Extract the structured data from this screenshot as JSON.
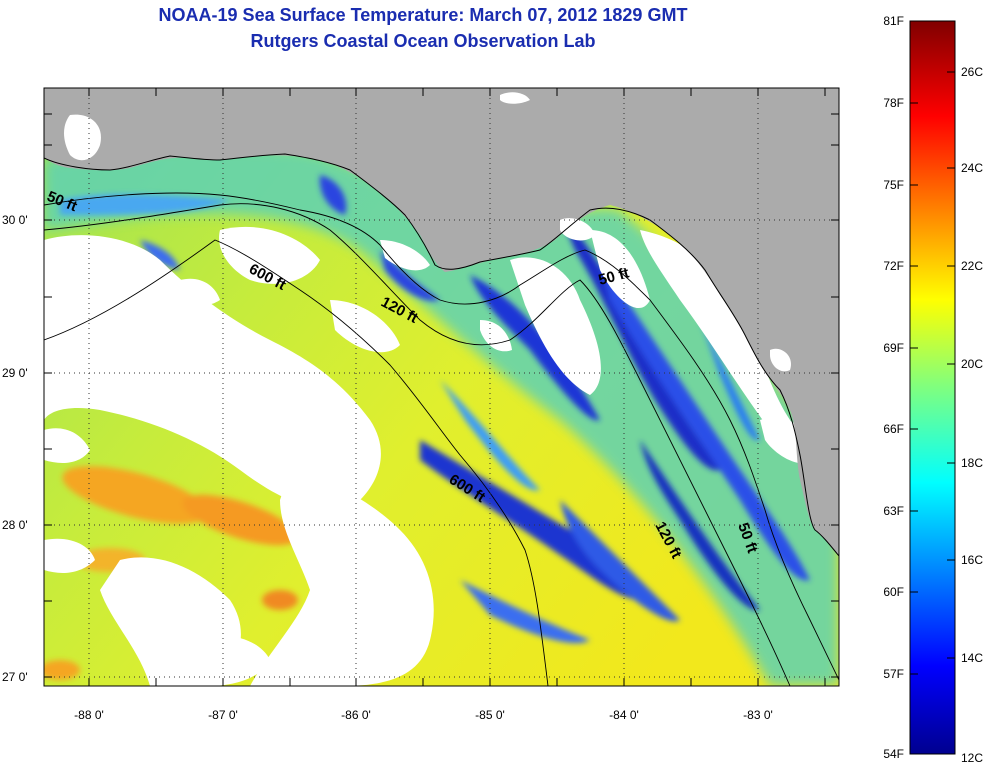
{
  "title": {
    "line1": "NOAA-19 Sea Surface Temperature:  March 07, 2012 1829 GMT",
    "line2": "Rutgers Coastal Ocean Observation Lab"
  },
  "axes": {
    "lat_labels": [
      "30 0'",
      "29 0'",
      "28 0'",
      "27 0'"
    ],
    "lon_labels": [
      "-88 0'",
      "-87 0'",
      "-86 0'",
      "-85 0'",
      "-84 0'",
      "-83 0'"
    ]
  },
  "contours": {
    "labels": [
      "50 ft",
      "600 ft",
      "120 ft",
      "50 ft",
      "600 ft",
      "120 ft",
      "50 ft"
    ]
  },
  "colorbar": {
    "fahrenheit": [
      "81F",
      "78F",
      "75F",
      "72F",
      "69F",
      "66F",
      "63F",
      "60F",
      "57F",
      "54F"
    ],
    "celsius": [
      "26C",
      "24C",
      "22C",
      "20C",
      "18C",
      "16C",
      "14C",
      "12C"
    ]
  },
  "colors": {
    "title": "#1a2db0",
    "land": "#ababab",
    "cloud": "#ffffff"
  }
}
